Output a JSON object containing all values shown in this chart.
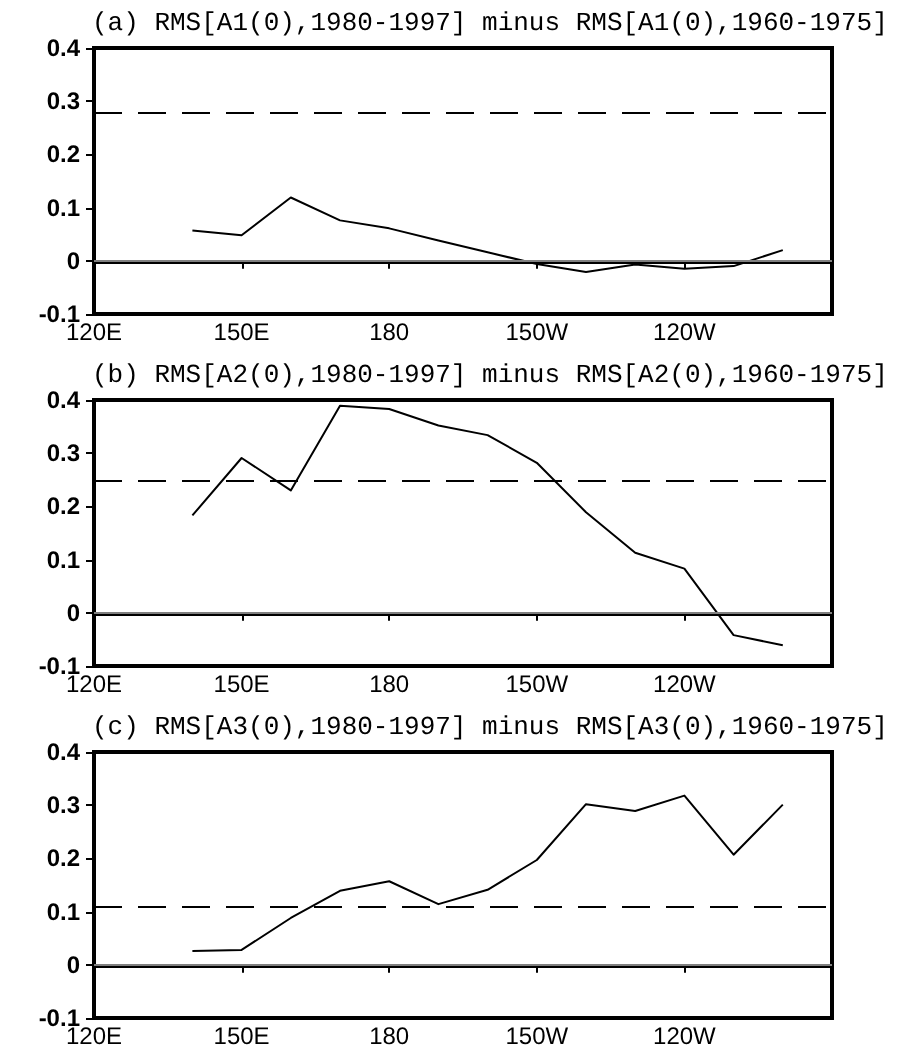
{
  "chart_data": [
    {
      "type": "line",
      "title": "(a) RMS[A1(0),1980-1997] minus RMS[A1(0),1960-1975]",
      "categories": [
        "120E",
        null,
        null,
        "150E",
        null,
        null,
        "180",
        null,
        null,
        "150W",
        null,
        null,
        "120W",
        null,
        null,
        null
      ],
      "series": [
        {
          "color": "#000000",
          "values": [
            null,
            null,
            0.057,
            0.048,
            0.119,
            0.076,
            0.061,
            0.038,
            0.016,
            -0.006,
            -0.021,
            -0.007,
            -0.015,
            -0.01,
            0.02,
            null
          ]
        }
      ],
      "ylim": [
        -0.1,
        0.4
      ],
      "yticks": [
        -0.1,
        0,
        0.1,
        0.2,
        0.3,
        0.4
      ],
      "grid": false,
      "marker": "none",
      "ref_lines": [
        {
          "axis": "y",
          "value": 0.28,
          "color": "#000000",
          "line_style": "dashed"
        },
        {
          "axis": "y",
          "value": 0,
          "color": "#808080",
          "line_style": "solid"
        }
      ]
    },
    {
      "type": "line",
      "title": "(b) RMS[A2(0),1980-1997] minus RMS[A2(0),1960-1975]",
      "categories": [
        "120E",
        null,
        null,
        "150E",
        null,
        null,
        "180",
        null,
        null,
        "150W",
        null,
        null,
        "120W",
        null,
        null,
        null
      ],
      "series": [
        {
          "color": "#000000",
          "values": [
            null,
            null,
            0.183,
            0.291,
            0.23,
            0.389,
            0.383,
            0.352,
            0.334,
            0.282,
            0.189,
            0.113,
            0.083,
            -0.042,
            -0.061,
            null
          ]
        }
      ],
      "ylim": [
        -0.1,
        0.4
      ],
      "yticks": [
        -0.1,
        0,
        0.1,
        0.2,
        0.3,
        0.4
      ],
      "grid": false,
      "marker": "none",
      "ref_lines": [
        {
          "axis": "y",
          "value": 0.25,
          "color": "#000000",
          "line_style": "dashed"
        },
        {
          "axis": "y",
          "value": 0,
          "color": "#808080",
          "line_style": "solid"
        }
      ]
    },
    {
      "type": "line",
      "title": "(c) RMS[A3(0),1980-1997] minus RMS[A3(0),1960-1975]",
      "categories": [
        "120E",
        null,
        null,
        "150E",
        null,
        null,
        "180",
        null,
        null,
        "150W",
        null,
        null,
        "120W",
        null,
        null,
        null
      ],
      "series": [
        {
          "color": "#000000",
          "values": [
            null,
            null,
            0.026,
            0.028,
            0.088,
            0.139,
            0.157,
            0.114,
            0.141,
            0.197,
            0.302,
            0.289,
            0.318,
            0.207,
            0.301,
            null
          ]
        }
      ],
      "ylim": [
        -0.1,
        0.4
      ],
      "yticks": [
        -0.1,
        0,
        0.1,
        0.2,
        0.3,
        0.4
      ],
      "grid": false,
      "marker": "none",
      "ref_lines": [
        {
          "axis": "y",
          "value": 0.11,
          "color": "#000000",
          "line_style": "dashed"
        },
        {
          "axis": "y",
          "value": 0,
          "color": "#808080",
          "line_style": "solid"
        }
      ]
    }
  ]
}
